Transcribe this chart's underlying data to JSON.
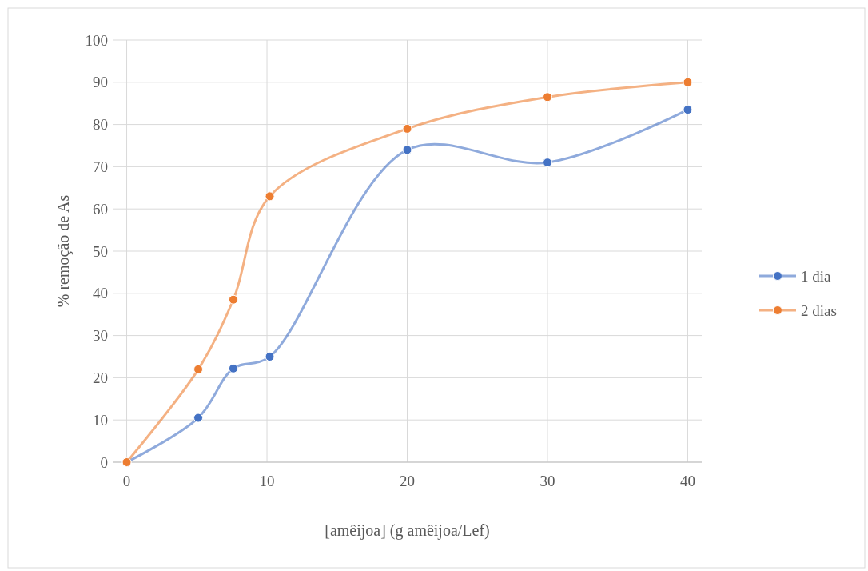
{
  "chart_data": {
    "type": "line",
    "xlabel": "[amêijoa] (g amêijoa/Lef)",
    "ylabel": "% remoção de As",
    "xlim": [
      -1,
      41
    ],
    "xticks": [
      0,
      10,
      20,
      30,
      40
    ],
    "ylim": [
      0,
      100
    ],
    "yticks": [
      0,
      10,
      20,
      30,
      40,
      50,
      60,
      70,
      80,
      90,
      100
    ],
    "grid": true,
    "legend": "right",
    "marker": "circle",
    "line_style": "solid",
    "series": [
      {
        "name": "1 dia",
        "color": "#4472c4",
        "x": [
          0,
          5.1,
          7.6,
          10.2,
          20,
          30,
          40
        ],
        "values": [
          0,
          10.5,
          22.2,
          25,
          74,
          71,
          83.5
        ]
      },
      {
        "name": "2 dias",
        "color": "#ed7d31",
        "x": [
          0,
          5.1,
          7.6,
          10.2,
          20,
          30,
          40
        ],
        "values": [
          0,
          22,
          38.5,
          63,
          79,
          86.5,
          90
        ]
      }
    ]
  }
}
